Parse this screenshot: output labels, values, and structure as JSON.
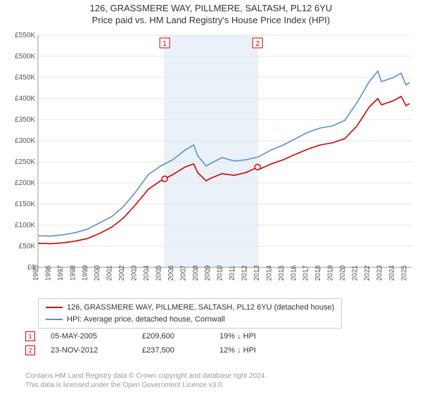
{
  "title": {
    "line1": "126, GRASSMERE WAY, PILLMERE, SALTASH, PL12 6YU",
    "line2": "Price paid vs. HM Land Registry's House Price Index (HPI)"
  },
  "chart": {
    "type": "line",
    "background_color": "#ffffff",
    "grid_color": "#e6e6e6",
    "axis_color": "#999999",
    "xlim": [
      1995,
      2025.5
    ],
    "ylim": [
      0,
      550000
    ],
    "ytick_step": 50000,
    "yticks": [
      "£0",
      "£50K",
      "£100K",
      "£150K",
      "£200K",
      "£250K",
      "£300K",
      "£350K",
      "£400K",
      "£450K",
      "£500K",
      "£550K"
    ],
    "xticks": [
      1995,
      1996,
      1997,
      1998,
      1999,
      2000,
      2001,
      2002,
      2003,
      2004,
      2005,
      2006,
      2007,
      2008,
      2009,
      2010,
      2011,
      2012,
      2013,
      2014,
      2015,
      2016,
      2017,
      2018,
      2019,
      2020,
      2021,
      2022,
      2023,
      2024,
      2025
    ],
    "shaded_region": {
      "start": 2005.33,
      "end": 2012.9,
      "color": "#e8eef7"
    },
    "label_fontsize": 10,
    "series": [
      {
        "id": "property",
        "label": "126, GRASSMERE WAY, PILLMERE, SALTASH, PL12 6YU (detached house)",
        "color": "#d40000",
        "line_width": 1.6,
        "data": [
          [
            1995,
            57000
          ],
          [
            1996,
            56000
          ],
          [
            1997,
            58000
          ],
          [
            1998,
            62000
          ],
          [
            1999,
            68000
          ],
          [
            2000,
            80000
          ],
          [
            2001,
            95000
          ],
          [
            2002,
            118000
          ],
          [
            2003,
            150000
          ],
          [
            2004,
            185000
          ],
          [
            2005,
            205000
          ],
          [
            2005.33,
            209600
          ],
          [
            2006,
            220000
          ],
          [
            2007,
            238000
          ],
          [
            2007.7,
            245000
          ],
          [
            2008,
            225000
          ],
          [
            2008.7,
            205000
          ],
          [
            2009,
            210000
          ],
          [
            2010,
            222000
          ],
          [
            2011,
            218000
          ],
          [
            2012,
            225000
          ],
          [
            2012.9,
            237500
          ],
          [
            2013,
            232000
          ],
          [
            2014,
            245000
          ],
          [
            2015,
            255000
          ],
          [
            2016,
            268000
          ],
          [
            2017,
            280000
          ],
          [
            2018,
            290000
          ],
          [
            2019,
            295000
          ],
          [
            2020,
            305000
          ],
          [
            2021,
            335000
          ],
          [
            2022,
            380000
          ],
          [
            2022.7,
            400000
          ],
          [
            2023,
            385000
          ],
          [
            2024,
            395000
          ],
          [
            2024.6,
            405000
          ],
          [
            2025,
            383000
          ],
          [
            2025.3,
            388000
          ]
        ]
      },
      {
        "id": "hpi",
        "label": "HPI: Average price, detached house, Cornwall",
        "color": "#5a8fd6",
        "line_width": 1.6,
        "data": [
          [
            1995,
            75000
          ],
          [
            1996,
            74000
          ],
          [
            1997,
            77000
          ],
          [
            1998,
            82000
          ],
          [
            1999,
            90000
          ],
          [
            2000,
            105000
          ],
          [
            2001,
            120000
          ],
          [
            2002,
            145000
          ],
          [
            2003,
            180000
          ],
          [
            2004,
            220000
          ],
          [
            2005,
            240000
          ],
          [
            2006,
            255000
          ],
          [
            2007,
            278000
          ],
          [
            2007.7,
            290000
          ],
          [
            2008,
            265000
          ],
          [
            2008.7,
            240000
          ],
          [
            2009,
            245000
          ],
          [
            2010,
            260000
          ],
          [
            2011,
            252000
          ],
          [
            2012,
            255000
          ],
          [
            2013,
            262000
          ],
          [
            2014,
            278000
          ],
          [
            2015,
            290000
          ],
          [
            2016,
            305000
          ],
          [
            2017,
            320000
          ],
          [
            2018,
            330000
          ],
          [
            2019,
            335000
          ],
          [
            2020,
            348000
          ],
          [
            2021,
            390000
          ],
          [
            2022,
            440000
          ],
          [
            2022.7,
            465000
          ],
          [
            2023,
            440000
          ],
          [
            2024,
            450000
          ],
          [
            2024.6,
            460000
          ],
          [
            2025,
            432000
          ],
          [
            2025.3,
            438000
          ]
        ]
      }
    ],
    "sale_markers": [
      {
        "n": 1,
        "x": 2005.33,
        "y": 209600,
        "color": "#d40000"
      },
      {
        "n": 2,
        "x": 2012.9,
        "y": 237500,
        "color": "#d40000"
      }
    ]
  },
  "legend": {
    "border_color": "#cccccc",
    "rows": [
      {
        "color": "#d40000",
        "label": "126, GRASSMERE WAY, PILLMERE, SALTASH, PL12 6YU (detached house)"
      },
      {
        "color": "#5a8fd6",
        "label": "HPI: Average price, detached house, Cornwall"
      }
    ]
  },
  "sales_table": {
    "rows": [
      {
        "marker": "1",
        "marker_color": "#d40000",
        "date": "05-MAY-2005",
        "price": "£209,600",
        "diff": "19% ↓ HPI"
      },
      {
        "marker": "2",
        "marker_color": "#d40000",
        "date": "23-NOV-2012",
        "price": "£237,500",
        "diff": "12% ↓ HPI"
      }
    ]
  },
  "attribution": {
    "line1": "Contains HM Land Registry data © Crown copyright and database right 2024.",
    "line2": "This data is licensed under the Open Government Licence v3.0."
  }
}
